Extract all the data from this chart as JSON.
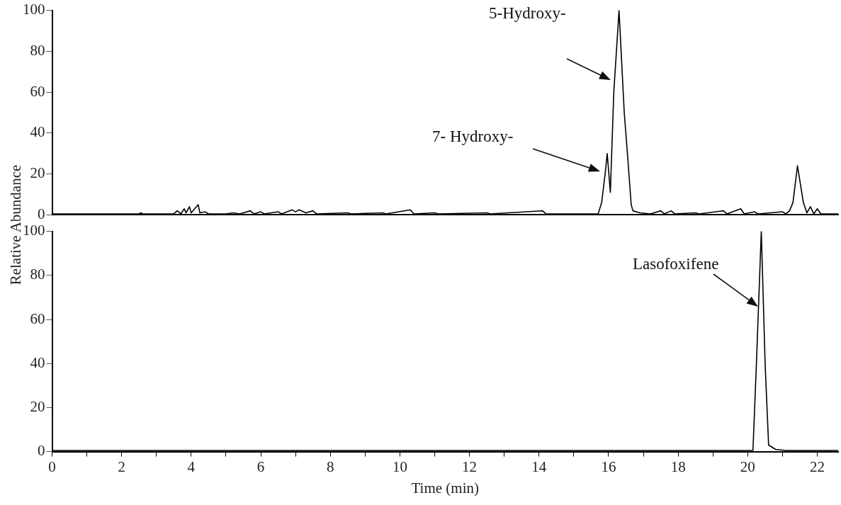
{
  "chart_data": [
    {
      "type": "line",
      "ylabel": "Relative Abundance",
      "tick_labels": "y",
      "grid": false,
      "marker": "none",
      "xlim": [
        0,
        22.6
      ],
      "ylim": [
        0,
        100
      ],
      "yticks": [
        0,
        20,
        40,
        60,
        80,
        100
      ],
      "series": [
        {
          "color": "#000000",
          "x": [
            0,
            2.5,
            2.55,
            2.6,
            3.5,
            3.6,
            3.7,
            3.8,
            3.85,
            3.95,
            4.0,
            4.2,
            4.25,
            4.4,
            4.5,
            5.0,
            5.2,
            5.4,
            5.7,
            5.8,
            6.0,
            6.1,
            6.5,
            6.6,
            6.9,
            7.0,
            7.1,
            7.3,
            7.5,
            7.6,
            8.5,
            8.6,
            9.5,
            9.6,
            10.3,
            10.4,
            11.0,
            11.1,
            12.5,
            12.6,
            14.1,
            14.2,
            15.0,
            15.7,
            15.8,
            15.9,
            15.96,
            16.05,
            16.15,
            16.3,
            16.45,
            16.55,
            16.65,
            16.7,
            16.9,
            17.2,
            17.5,
            17.6,
            17.8,
            17.9,
            18.5,
            18.6,
            19.3,
            19.4,
            19.8,
            19.9,
            20.2,
            20.3,
            21.0,
            21.1,
            21.2,
            21.3,
            21.43,
            21.6,
            21.7,
            21.8,
            21.9,
            22.0,
            22.1,
            22.6
          ],
          "values": [
            0.5,
            0.5,
            1,
            0.5,
            0.5,
            2,
            0.5,
            3,
            1,
            4,
            1,
            5,
            1,
            1.5,
            0.5,
            0.5,
            1,
            0.5,
            2,
            0.5,
            1.5,
            0.5,
            1.5,
            0.5,
            2.5,
            1.5,
            2.5,
            1,
            2,
            0.5,
            1,
            0.5,
            1,
            0.5,
            2.5,
            0.5,
            1,
            0.5,
            1,
            0.5,
            2,
            0.5,
            0.5,
            0.5,
            6,
            20,
            30,
            11,
            60,
            100,
            50,
            28,
            5,
            2,
            1,
            0.5,
            2,
            0.5,
            2,
            0.5,
            1,
            0.5,
            2,
            0.5,
            3,
            0.5,
            1.5,
            0.5,
            1.5,
            0.5,
            2,
            6,
            24,
            6,
            1,
            4,
            0.5,
            3,
            0.5,
            0.5
          ]
        }
      ],
      "annotations": [
        "5-Hydroxy-",
        "7- Hydroxy-"
      ]
    },
    {
      "type": "line",
      "xlabel": "Time (min)",
      "grid": false,
      "marker": "none",
      "xlim": [
        0,
        22.6
      ],
      "ylim": [
        0,
        100
      ],
      "yticks": [
        0,
        20,
        40,
        60,
        80,
        100
      ],
      "xticks": [
        0,
        {
          "value": 1,
          "label": null
        },
        2,
        {
          "value": 3,
          "label": null
        },
        4,
        {
          "value": 5,
          "label": null
        },
        6,
        {
          "value": 7,
          "label": null
        },
        8,
        {
          "value": 9,
          "label": null
        },
        10,
        {
          "value": 11,
          "label": null
        },
        12,
        {
          "value": 13,
          "label": null
        },
        14,
        {
          "value": 15,
          "label": null
        },
        16,
        {
          "value": 17,
          "label": null
        },
        18,
        {
          "value": 19,
          "label": null
        },
        20,
        {
          "value": 21,
          "label": null
        },
        22
      ],
      "series": [
        {
          "color": "#000000",
          "x": [
            0,
            20.15,
            20.25,
            20.39,
            20.5,
            20.6,
            20.8,
            21.1,
            22.6
          ],
          "values": [
            0.5,
            0.5,
            40,
            100,
            40,
            3,
            1,
            0.5,
            0.5
          ]
        }
      ],
      "annotations": [
        "Lasofoxifene"
      ]
    }
  ]
}
